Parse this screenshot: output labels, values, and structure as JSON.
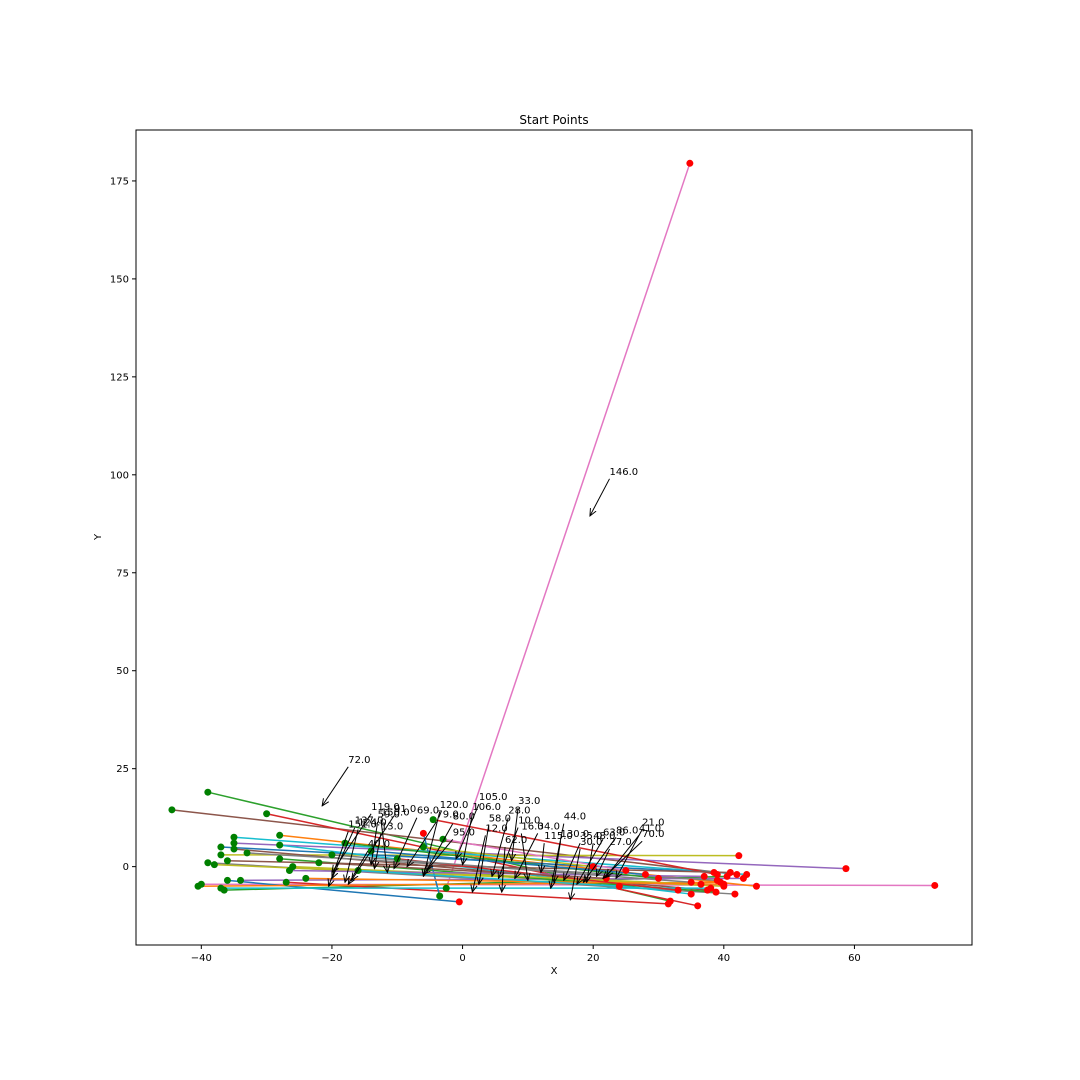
{
  "chart_data": {
    "type": "line",
    "title": "Start Points",
    "xlabel": "X",
    "ylabel": "Y",
    "xlim": [
      -50,
      78
    ],
    "ylim": [
      -20,
      188
    ],
    "xticks": [
      -40,
      -20,
      0,
      20,
      40,
      60
    ],
    "yticks": [
      0,
      25,
      50,
      75,
      100,
      125,
      150,
      175
    ],
    "grid": false,
    "start_marker_color": "#008000",
    "end_marker_color": "#ff0000",
    "series": [
      {
        "color": "#e377c2",
        "x": [
          -2.5,
          34.8
        ],
        "y": [
          -5.5,
          179.5
        ]
      },
      {
        "color": "#e377c2",
        "x": [
          -40.0,
          72.3
        ],
        "y": [
          -4.5,
          -4.8
        ]
      },
      {
        "color": "#2ca02c",
        "x": [
          -39.0,
          31.8
        ],
        "y": [
          19.0,
          -8.8
        ]
      },
      {
        "color": "#8c564b",
        "x": [
          -44.5,
          42.0
        ],
        "y": [
          14.5,
          -2.0
        ]
      },
      {
        "color": "#d62728",
        "x": [
          -30.0,
          36.0
        ],
        "y": [
          13.5,
          -10.0
        ]
      },
      {
        "color": "#9467bd",
        "x": [
          -35.0,
          58.7
        ],
        "y": [
          6.0,
          -0.5
        ]
      },
      {
        "color": "#ff7f0e",
        "x": [
          -28.0,
          45.0
        ],
        "y": [
          8.0,
          -5.0
        ]
      },
      {
        "color": "#bcbd22",
        "x": [
          -37.0,
          42.3
        ],
        "y": [
          3.0,
          2.8
        ]
      },
      {
        "color": "#17becf",
        "x": [
          -35.0,
          43.5
        ],
        "y": [
          7.5,
          -2.0
        ]
      },
      {
        "color": "#1f77b4",
        "x": [
          -36.0,
          -0.5
        ],
        "y": [
          -3.5,
          -9.0
        ]
      },
      {
        "color": "#7f7f7f",
        "x": [
          -39.0,
          41.7
        ],
        "y": [
          1.0,
          -7.0
        ]
      },
      {
        "color": "#2ca02c",
        "x": [
          -36.5,
          40.5
        ],
        "y": [
          -6.0,
          -2.5
        ]
      },
      {
        "color": "#d62728",
        "x": [
          -27.0,
          31.5
        ],
        "y": [
          -4.0,
          -9.5
        ]
      },
      {
        "color": "#1f77b4",
        "x": [
          -37.0,
          38.5
        ],
        "y": [
          5.0,
          -1.5
        ]
      },
      {
        "color": "#ff7f0e",
        "x": [
          -40.5,
          39.5
        ],
        "y": [
          -5.0,
          -4.0
        ]
      },
      {
        "color": "#9467bd",
        "x": [
          -34.0,
          43.0
        ],
        "y": [
          -3.5,
          -3.0
        ]
      },
      {
        "color": "#8c564b",
        "x": [
          -35.0,
          37.5
        ],
        "y": [
          4.5,
          -6.0
        ]
      },
      {
        "color": "#17becf",
        "x": [
          -28.0,
          35.0
        ],
        "y": [
          5.5,
          -7.0
        ]
      },
      {
        "color": "#bcbd22",
        "x": [
          -38.0,
          40.0
        ],
        "y": [
          0.5,
          -5.0
        ]
      },
      {
        "color": "#2ca02c",
        "x": [
          -28.0,
          38.8
        ],
        "y": [
          2.0,
          -6.5
        ]
      },
      {
        "color": "#d62728",
        "x": [
          -4.5,
          39.0
        ],
        "y": [
          12.0,
          -2.0
        ]
      },
      {
        "color": "#1f77b4",
        "x": [
          -3.5,
          -6.0
        ],
        "y": [
          -7.5,
          8.5
        ]
      },
      {
        "color": "#bcbd22",
        "x": [
          -26.0,
          36.5
        ],
        "y": [
          0.0,
          -4.5
        ]
      },
      {
        "color": "#7f7f7f",
        "x": [
          -33.0,
          39.0
        ],
        "y": [
          3.5,
          -3.5
        ]
      },
      {
        "color": "#17becf",
        "x": [
          -37.0,
          38.0
        ],
        "y": [
          -5.5,
          -5.5
        ]
      },
      {
        "color": "#8c564b",
        "x": [
          -36.0,
          41.0
        ],
        "y": [
          1.5,
          -1.5
        ]
      },
      {
        "color": "#9467bd",
        "x": [
          -26.5,
          37.0
        ],
        "y": [
          -1.0,
          -2.5
        ]
      },
      {
        "color": "#ff7f0e",
        "x": [
          -24.0,
          40.0
        ],
        "y": [
          -3.0,
          -4.5
        ]
      },
      {
        "color": "#2ca02c",
        "x": [
          -18.0,
          30.0
        ],
        "y": [
          6.0,
          -3.0
        ]
      },
      {
        "color": "#1f77b4",
        "x": [
          -14.0,
          28.0
        ],
        "y": [
          4.0,
          -2.0
        ]
      },
      {
        "color": "#d62728",
        "x": [
          -10.0,
          33.0
        ],
        "y": [
          2.0,
          -6.0
        ]
      },
      {
        "color": "#e377c2",
        "x": [
          -3.0,
          25.0
        ],
        "y": [
          7.0,
          -1.0
        ]
      },
      {
        "color": "#bcbd22",
        "x": [
          -6.0,
          20.0
        ],
        "y": [
          5.0,
          0.0
        ]
      },
      {
        "color": "#17becf",
        "x": [
          -16.0,
          24.0
        ],
        "y": [
          -1.0,
          -5.0
        ]
      },
      {
        "color": "#7f7f7f",
        "x": [
          -20.0,
          35.0
        ],
        "y": [
          3.0,
          -4.0
        ]
      },
      {
        "color": "#8c564b",
        "x": [
          -22.0,
          22.0
        ],
        "y": [
          1.0,
          -3.0
        ]
      }
    ],
    "annotations": [
      {
        "label": "146.0",
        "x": 19.5,
        "y": 89.5,
        "text_x": 22.5,
        "text_y": 100
      },
      {
        "label": "72.0",
        "x": -21.5,
        "y": 15.5,
        "text_x": -17.5,
        "text_y": 26.5
      },
      {
        "label": "119.0",
        "x": -20.0,
        "y": -1.5,
        "text_x": -14.0,
        "text_y": 14.5
      },
      {
        "label": "91.0",
        "x": -17.0,
        "y": -3.5,
        "text_x": -10.5,
        "text_y": 14.0
      },
      {
        "label": "69.0",
        "x": -10.5,
        "y": -0.5,
        "text_x": -7.0,
        "text_y": 13.5
      },
      {
        "label": "120.0",
        "x": -6.0,
        "y": -2.5,
        "text_x": -3.5,
        "text_y": 15.0
      },
      {
        "label": "79.0",
        "x": -8.5,
        "y": 0.0,
        "text_x": -4.0,
        "text_y": 12.5
      },
      {
        "label": "80.0",
        "x": -5.5,
        "y": -1.0,
        "text_x": -1.5,
        "text_y": 12.0
      },
      {
        "label": "105.0",
        "x": -1.0,
        "y": 2.0,
        "text_x": 2.5,
        "text_y": 17.0
      },
      {
        "label": "106.0",
        "x": 0.0,
        "y": 0.5,
        "text_x": 1.5,
        "text_y": 14.5
      },
      {
        "label": "28.0",
        "x": 4.5,
        "y": -2.5,
        "text_x": 7.0,
        "text_y": 13.5
      },
      {
        "label": "33.0",
        "x": 7.5,
        "y": 1.5,
        "text_x": 8.5,
        "text_y": 16.0
      },
      {
        "label": "10.0",
        "x": 5.5,
        "y": -3.0,
        "text_x": 8.5,
        "text_y": 11.0
      },
      {
        "label": "44.0",
        "x": 13.5,
        "y": -5.5,
        "text_x": 15.5,
        "text_y": 12.0
      },
      {
        "label": "21.0",
        "x": 23.5,
        "y": -3.0,
        "text_x": 27.5,
        "text_y": 10.5
      },
      {
        "label": "41.0",
        "x": 22.0,
        "y": -2.5,
        "text_x": 27.0,
        "text_y": 9.0
      },
      {
        "label": "70.0",
        "x": 21.5,
        "y": -3.0,
        "text_x": 27.5,
        "text_y": 7.5
      },
      {
        "label": "86.0",
        "x": 18.5,
        "y": -4.0,
        "text_x": 23.5,
        "text_y": 8.5
      },
      {
        "label": "63.0",
        "x": 17.5,
        "y": -4.5,
        "text_x": 21.5,
        "text_y": 8.0
      },
      {
        "label": "48.0",
        "x": 19.0,
        "y": -4.0,
        "text_x": 20.0,
        "text_y": 7.0
      },
      {
        "label": "35.0",
        "x": 15.5,
        "y": -3.5,
        "text_x": 18.0,
        "text_y": 7.0
      },
      {
        "label": "27.0",
        "x": 20.5,
        "y": -2.5,
        "text_x": 22.5,
        "text_y": 5.5
      },
      {
        "label": "130.0",
        "x": 14.0,
        "y": -4.0,
        "text_x": 15.0,
        "text_y": 7.5
      },
      {
        "label": "34.0",
        "x": 8.0,
        "y": -3.0,
        "text_x": 11.5,
        "text_y": 9.5
      },
      {
        "label": "115.0",
        "x": 12.0,
        "y": -1.5,
        "text_x": 12.5,
        "text_y": 7.0
      },
      {
        "label": "30.0",
        "x": 16.5,
        "y": -8.5,
        "text_x": 18.0,
        "text_y": 5.5
      },
      {
        "label": "95.0",
        "x": -6.0,
        "y": -2.0,
        "text_x": -1.5,
        "text_y": 8.0
      },
      {
        "label": "137.0",
        "x": -20.0,
        "y": -3.0,
        "text_x": -16.5,
        "text_y": 11.0
      },
      {
        "label": "151.0",
        "x": -20.5,
        "y": -5.0,
        "text_x": -17.5,
        "text_y": 10.0
      },
      {
        "label": "124.0",
        "x": -18.0,
        "y": -4.0,
        "text_x": -16.0,
        "text_y": 10.5
      },
      {
        "label": "13.0",
        "x": -13.5,
        "y": -0.5,
        "text_x": -12.5,
        "text_y": 9.5
      },
      {
        "label": "59.0",
        "x": -14.0,
        "y": 0.5,
        "text_x": -13.0,
        "text_y": 12.5
      },
      {
        "label": "150.0",
        "x": -11.5,
        "y": -1.5,
        "text_x": -12.5,
        "text_y": 13.0
      },
      {
        "label": "40.0",
        "x": -17.5,
        "y": -4.5,
        "text_x": -14.5,
        "text_y": 5.0
      },
      {
        "label": "12.0",
        "x": 1.5,
        "y": -6.5,
        "text_x": 3.5,
        "text_y": 9.0
      },
      {
        "label": "58.0",
        "x": 2.5,
        "y": -4.5,
        "text_x": 4.0,
        "text_y": 11.5
      },
      {
        "label": "62.0",
        "x": 6.0,
        "y": -6.5,
        "text_x": 6.5,
        "text_y": 6.0
      },
      {
        "label": "16.0",
        "x": 10.0,
        "y": -3.5,
        "text_x": 9.0,
        "text_y": 9.5
      }
    ]
  }
}
